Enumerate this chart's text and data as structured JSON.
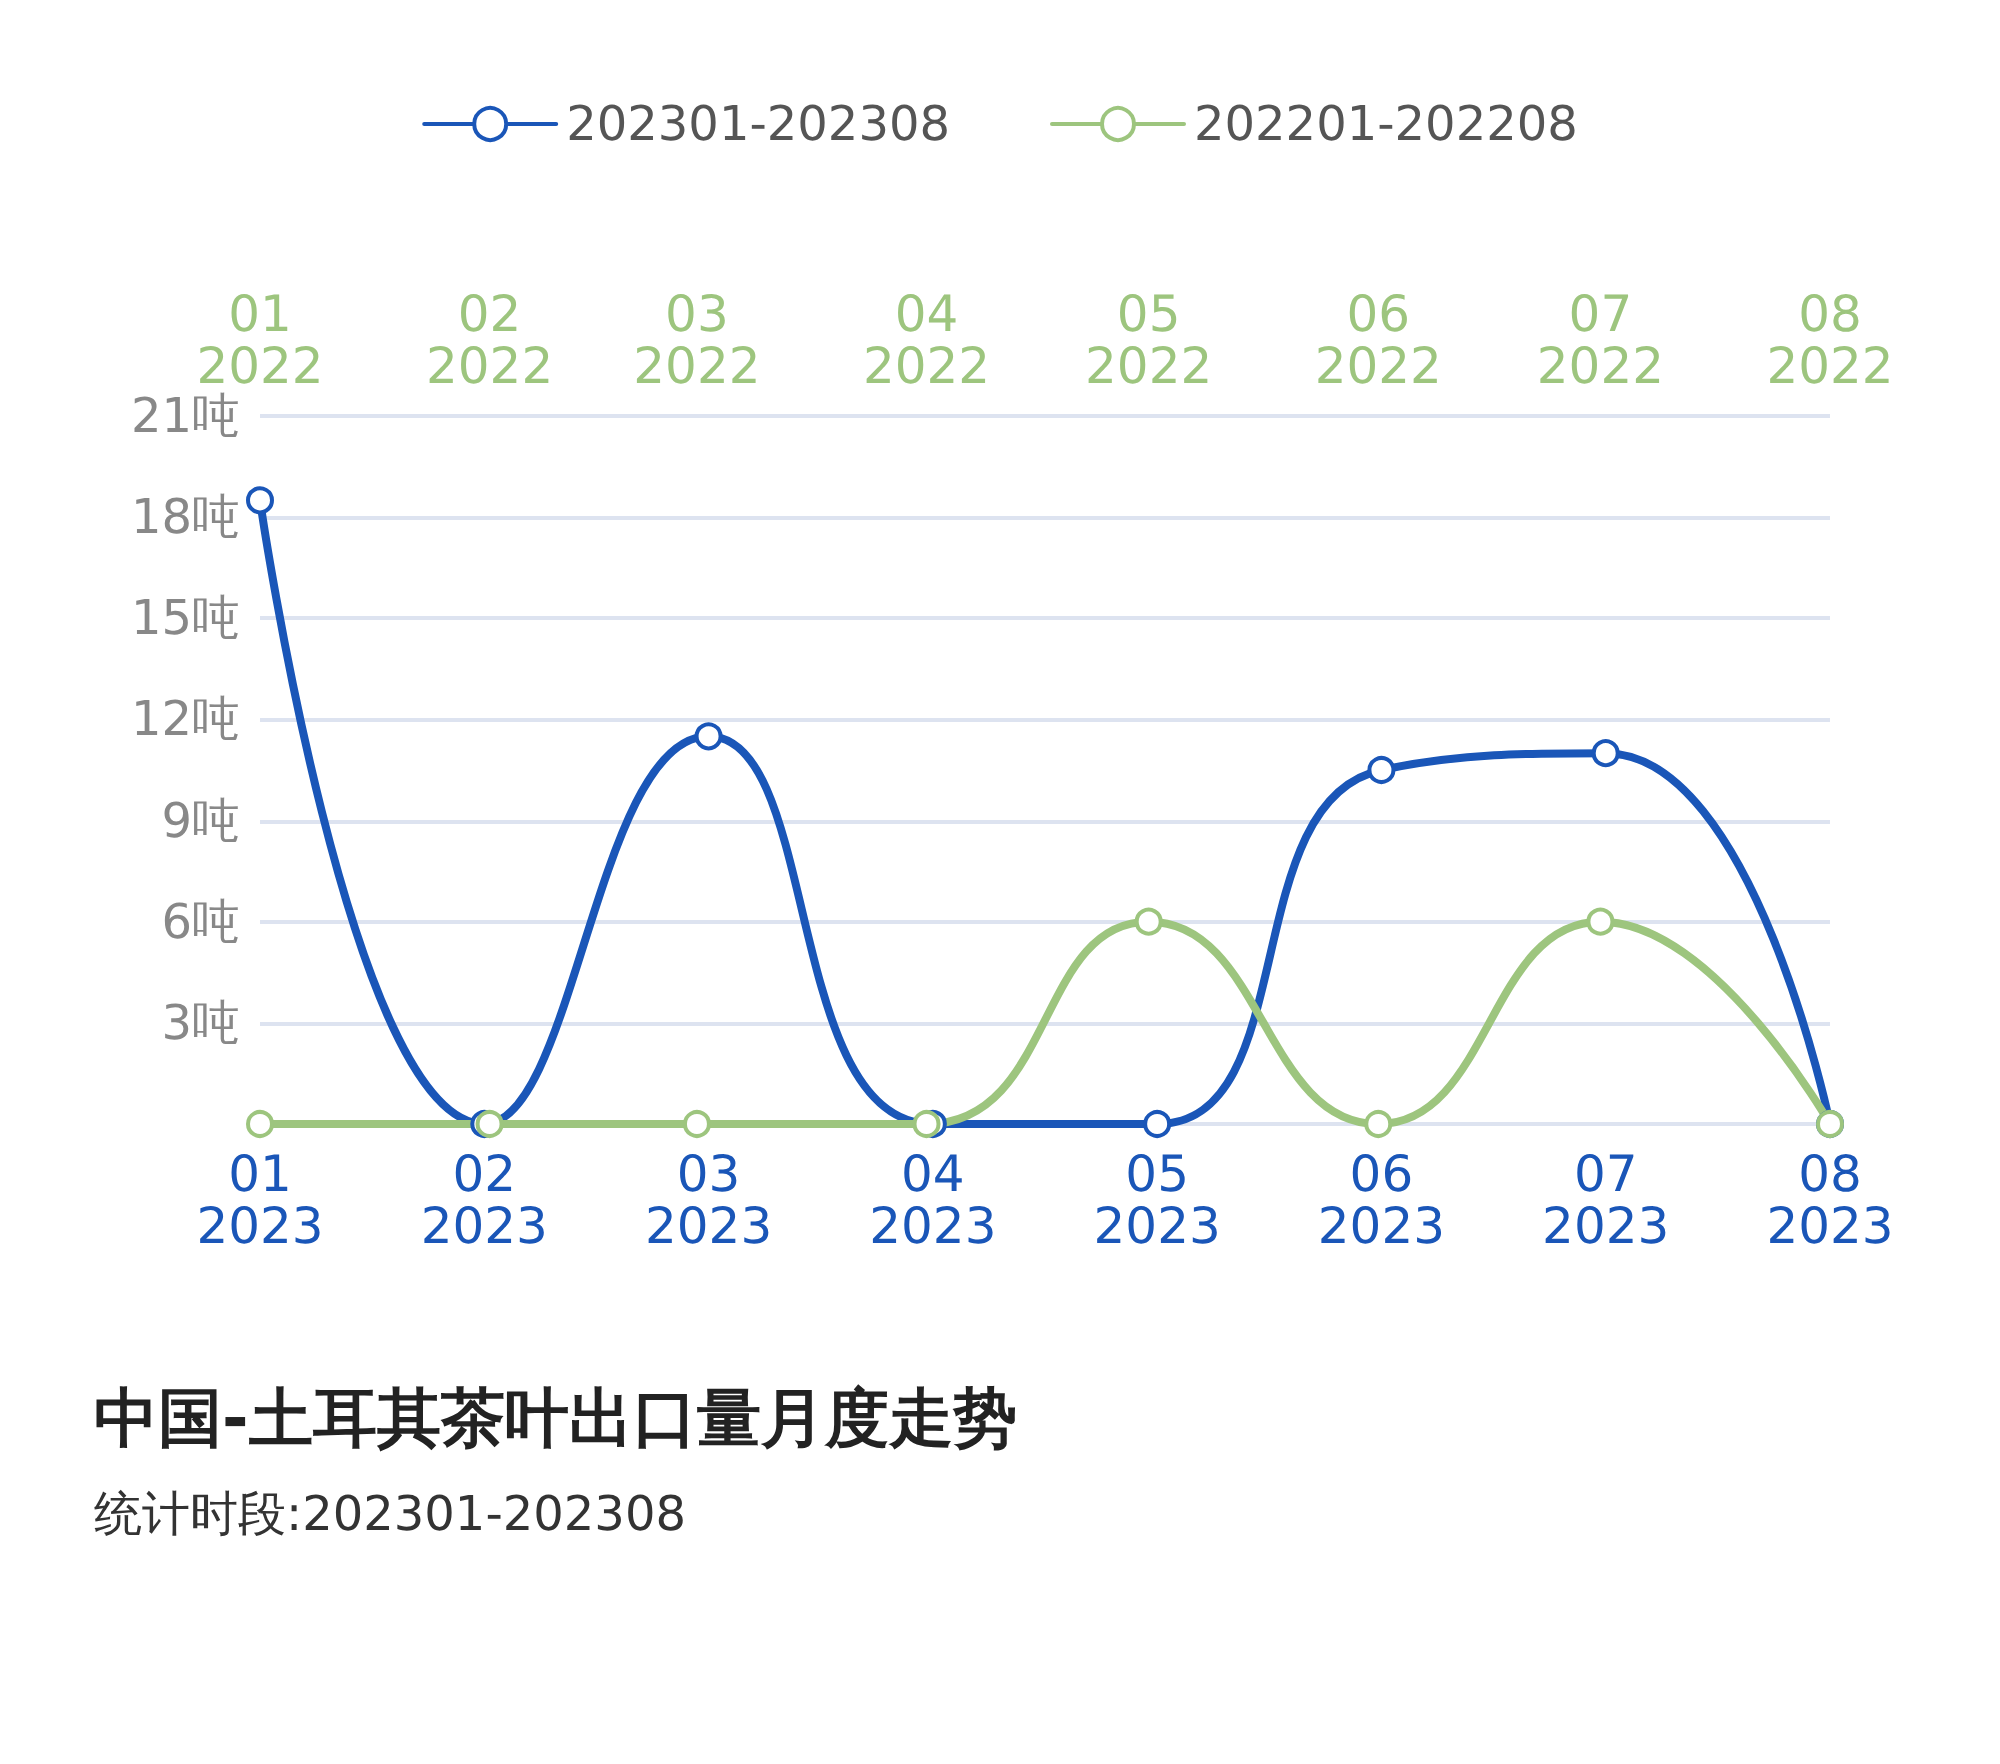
{
  "chart_data": {
    "type": "line",
    "title": "中国-土耳其茶叶出口量月度走势",
    "subtitle": "统计时段:202301-202308",
    "categories": [
      "01\n2023",
      "02\n2023",
      "03\n2023",
      "04\n2023",
      "05\n2023",
      "06\n2023",
      "07\n2023",
      "08\n2023"
    ],
    "x2lim": [
      "2022-01",
      "2022-08"
    ],
    "x2ticks": [
      {
        "value": "2022-01",
        "label": "01\n2022"
      },
      {
        "value": "2022-02",
        "label": "02\n2022"
      },
      {
        "value": "2022-03",
        "label": "03\n2022"
      },
      {
        "value": "2022-04",
        "label": "04\n2022"
      },
      {
        "value": "2022-05",
        "label": "05\n2022"
      },
      {
        "value": "2022-06",
        "label": "06\n2022"
      },
      {
        "value": "2022-07",
        "label": "07\n2022"
      },
      {
        "value": "2022-08",
        "label": "08\n2022"
      }
    ],
    "series": [
      {
        "name": "202301-202308",
        "color": "#1a56b8",
        "values": [
          18.5,
          0,
          11.5,
          0,
          0,
          10.5,
          11,
          0
        ]
      },
      {
        "name": "202201-202208",
        "color": "#9dc57e",
        "axis": "x2",
        "x": [
          "2022-01",
          "2022-02",
          "2022-03",
          "2022-04",
          "2022-05",
          "2022-06",
          "2022-07",
          "2022-08"
        ],
        "values": [
          0,
          0,
          0,
          0,
          6,
          0,
          6,
          0
        ]
      }
    ],
    "ylim": [
      0,
      21
    ],
    "yticks": [
      {
        "value": 0,
        "label": null
      },
      {
        "value": 3,
        "label": "3吨"
      },
      {
        "value": 6,
        "label": "6吨"
      },
      {
        "value": 9,
        "label": "9吨"
      },
      {
        "value": 12,
        "label": "12吨"
      },
      {
        "value": 15,
        "label": "15吨"
      },
      {
        "value": 18,
        "label": "18吨"
      },
      {
        "value": 21,
        "label": "21吨"
      }
    ],
    "grid": "y",
    "legend": "top",
    "marker": "circle",
    "line_style": "solid"
  }
}
